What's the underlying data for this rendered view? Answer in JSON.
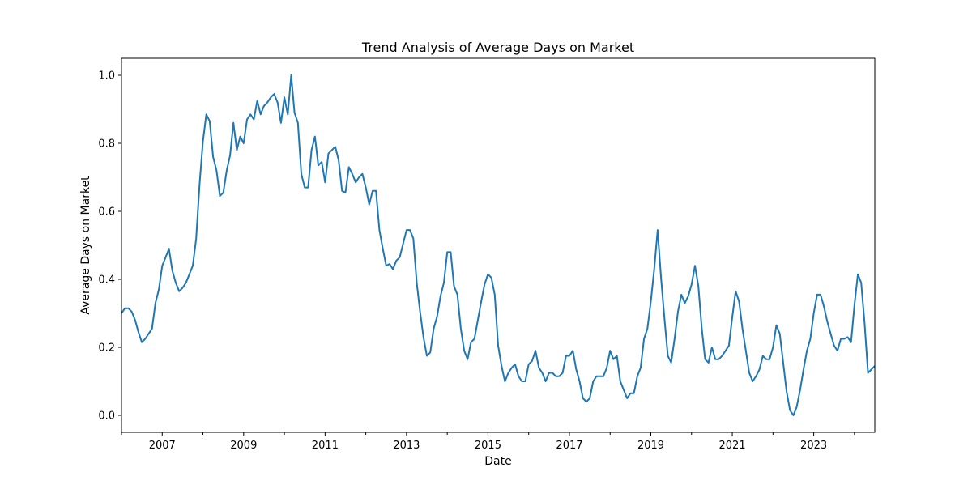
{
  "chart_data": {
    "type": "line",
    "title": "Trend Analysis of Average Days on Market",
    "xlabel": "Date",
    "ylabel": "Average Days on Market",
    "xlim": [
      "2006-01",
      "2024-07"
    ],
    "ylim": [
      -0.05,
      1.05
    ],
    "x_ticks": [
      "2007",
      "2009",
      "2011",
      "2013",
      "2015",
      "2017",
      "2019",
      "2021",
      "2023"
    ],
    "y_ticks": [
      "0.0",
      "0.2",
      "0.4",
      "0.6",
      "0.8",
      "1.0"
    ],
    "grid": false,
    "line_color": "#1f77b4",
    "series": [
      {
        "x": [
          "2006-01",
          "2006-02",
          "2006-03",
          "2006-04",
          "2006-05",
          "2006-06",
          "2006-07",
          "2006-08",
          "2006-09",
          "2006-10",
          "2006-11",
          "2006-12",
          "2007-01",
          "2007-02",
          "2007-03",
          "2007-04",
          "2007-05",
          "2007-06",
          "2007-07",
          "2007-08",
          "2007-09",
          "2007-10",
          "2007-11",
          "2007-12",
          "2008-01",
          "2008-02",
          "2008-03",
          "2008-04",
          "2008-05",
          "2008-06",
          "2008-07",
          "2008-08",
          "2008-09",
          "2008-10",
          "2008-11",
          "2008-12",
          "2009-01",
          "2009-02",
          "2009-03",
          "2009-04",
          "2009-05",
          "2009-06",
          "2009-07",
          "2009-08",
          "2009-09",
          "2009-10",
          "2009-11",
          "2009-12",
          "2010-01",
          "2010-02",
          "2010-03",
          "2010-04",
          "2010-05",
          "2010-06",
          "2010-07",
          "2010-08",
          "2010-09",
          "2010-10",
          "2010-11",
          "2010-12",
          "2011-01",
          "2011-02",
          "2011-03",
          "2011-04",
          "2011-05",
          "2011-06",
          "2011-07",
          "2011-08",
          "2011-09",
          "2011-10",
          "2011-11",
          "2011-12",
          "2012-01",
          "2012-02",
          "2012-03",
          "2012-04",
          "2012-05",
          "2012-06",
          "2012-07",
          "2012-08",
          "2012-09",
          "2012-10",
          "2012-11",
          "2012-12",
          "2013-01",
          "2013-02",
          "2013-03",
          "2013-04",
          "2013-05",
          "2013-06",
          "2013-07",
          "2013-08",
          "2013-09",
          "2013-10",
          "2013-11",
          "2013-12",
          "2014-01",
          "2014-02",
          "2014-03",
          "2014-04",
          "2014-05",
          "2014-06",
          "2014-07",
          "2014-08",
          "2014-09",
          "2014-10",
          "2014-11",
          "2014-12",
          "2015-01",
          "2015-02",
          "2015-03",
          "2015-04",
          "2015-05",
          "2015-06",
          "2015-07",
          "2015-08",
          "2015-09",
          "2015-10",
          "2015-11",
          "2015-12",
          "2016-01",
          "2016-02",
          "2016-03",
          "2016-04",
          "2016-05",
          "2016-06",
          "2016-07",
          "2016-08",
          "2016-09",
          "2016-10",
          "2016-11",
          "2016-12",
          "2017-01",
          "2017-02",
          "2017-03",
          "2017-04",
          "2017-05",
          "2017-06",
          "2017-07",
          "2017-08",
          "2017-09",
          "2017-10",
          "2017-11",
          "2017-12",
          "2018-01",
          "2018-02",
          "2018-03",
          "2018-04",
          "2018-05",
          "2018-06",
          "2018-07",
          "2018-08",
          "2018-09",
          "2018-10",
          "2018-11",
          "2018-12",
          "2019-01",
          "2019-02",
          "2019-03",
          "2019-04",
          "2019-05",
          "2019-06",
          "2019-07",
          "2019-08",
          "2019-09",
          "2019-10",
          "2019-11",
          "2019-12",
          "2020-01",
          "2020-02",
          "2020-03",
          "2020-04",
          "2020-05",
          "2020-06",
          "2020-07",
          "2020-08",
          "2020-09",
          "2020-10",
          "2020-11",
          "2020-12",
          "2021-01",
          "2021-02",
          "2021-03",
          "2021-04",
          "2021-05",
          "2021-06",
          "2021-07",
          "2021-08",
          "2021-09",
          "2021-10",
          "2021-11",
          "2021-12",
          "2022-01",
          "2022-02",
          "2022-03",
          "2022-04",
          "2022-05",
          "2022-06",
          "2022-07",
          "2022-08",
          "2022-09",
          "2022-10",
          "2022-11",
          "2022-12",
          "2023-01",
          "2023-02",
          "2023-03",
          "2023-04",
          "2023-05",
          "2023-06",
          "2023-07",
          "2023-08",
          "2023-09",
          "2023-10",
          "2023-11",
          "2023-12",
          "2024-01",
          "2024-02",
          "2024-03",
          "2024-04",
          "2024-05",
          "2024-06",
          "2024-07"
        ],
        "y": [
          0.3,
          0.315,
          0.315,
          0.305,
          0.28,
          0.245,
          0.215,
          0.225,
          0.24,
          0.255,
          0.33,
          0.37,
          0.44,
          0.465,
          0.49,
          0.425,
          0.39,
          0.365,
          0.375,
          0.39,
          0.415,
          0.44,
          0.52,
          0.68,
          0.805,
          0.885,
          0.865,
          0.76,
          0.72,
          0.645,
          0.655,
          0.72,
          0.765,
          0.86,
          0.78,
          0.82,
          0.8,
          0.87,
          0.885,
          0.87,
          0.925,
          0.885,
          0.91,
          0.92,
          0.935,
          0.945,
          0.92,
          0.86,
          0.935,
          0.885,
          1.0,
          0.89,
          0.86,
          0.71,
          0.67,
          0.67,
          0.78,
          0.82,
          0.735,
          0.745,
          0.685,
          0.77,
          0.78,
          0.79,
          0.75,
          0.66,
          0.655,
          0.73,
          0.71,
          0.685,
          0.7,
          0.71,
          0.67,
          0.62,
          0.66,
          0.66,
          0.545,
          0.49,
          0.44,
          0.445,
          0.43,
          0.455,
          0.465,
          0.505,
          0.545,
          0.545,
          0.52,
          0.39,
          0.305,
          0.23,
          0.175,
          0.185,
          0.255,
          0.29,
          0.35,
          0.39,
          0.48,
          0.48,
          0.38,
          0.355,
          0.255,
          0.19,
          0.165,
          0.215,
          0.225,
          0.28,
          0.335,
          0.385,
          0.415,
          0.405,
          0.355,
          0.205,
          0.145,
          0.1,
          0.125,
          0.14,
          0.15,
          0.115,
          0.1,
          0.1,
          0.15,
          0.16,
          0.19,
          0.14,
          0.125,
          0.1,
          0.125,
          0.125,
          0.115,
          0.115,
          0.125,
          0.175,
          0.175,
          0.19,
          0.135,
          0.1,
          0.05,
          0.04,
          0.05,
          0.1,
          0.115,
          0.115,
          0.115,
          0.14,
          0.19,
          0.165,
          0.175,
          0.1,
          0.075,
          0.05,
          0.065,
          0.065,
          0.115,
          0.14,
          0.225,
          0.255,
          0.335,
          0.43,
          0.545,
          0.405,
          0.285,
          0.175,
          0.155,
          0.225,
          0.305,
          0.355,
          0.33,
          0.35,
          0.385,
          0.44,
          0.38,
          0.255,
          0.165,
          0.155,
          0.2,
          0.165,
          0.165,
          0.175,
          0.19,
          0.205,
          0.29,
          0.365,
          0.335,
          0.255,
          0.19,
          0.125,
          0.1,
          0.115,
          0.135,
          0.175,
          0.165,
          0.165,
          0.2,
          0.265,
          0.24,
          0.155,
          0.07,
          0.015,
          0.0,
          0.025,
          0.075,
          0.135,
          0.19,
          0.225,
          0.3,
          0.355,
          0.355,
          0.32,
          0.275,
          0.24,
          0.205,
          0.19,
          0.225,
          0.225,
          0.23,
          0.215,
          0.325,
          0.415,
          0.39,
          0.27,
          0.125,
          0.135,
          0.145
        ]
      }
    ]
  }
}
